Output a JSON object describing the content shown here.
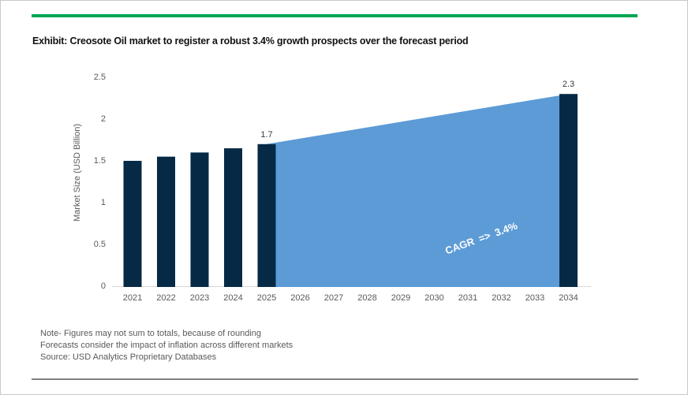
{
  "title": "Exhibit: Creosote Oil market to register a robust 3.4% growth prospects over the forecast period",
  "theme": {
    "accent_green": "#00A651",
    "bottom_rule_gray": "#7F7F7F",
    "axis_line_gray": "#D9D9D9",
    "tick_text_gray": "#595959"
  },
  "chart_data": {
    "type": "bar",
    "title": "",
    "categories": [
      "2021",
      "2022",
      "2023",
      "2024",
      "2025",
      "2026",
      "2027",
      "2028",
      "2029",
      "2030",
      "2031",
      "2032",
      "2033",
      "2034"
    ],
    "series": [
      {
        "name": "Market Size bars",
        "type": "bar",
        "values": [
          1.5,
          1.55,
          1.6,
          1.65,
          1.7,
          null,
          null,
          null,
          null,
          null,
          null,
          null,
          null,
          2.3
        ]
      },
      {
        "name": "Forecast wedge",
        "type": "area",
        "x": [
          "2025",
          "2034"
        ],
        "values": [
          1.7,
          2.3
        ]
      }
    ],
    "data_labels": [
      {
        "category": "2025",
        "label": "1.7",
        "value": 1.7
      },
      {
        "category": "2034",
        "label": "2.3",
        "value": 2.3
      }
    ],
    "annotation": {
      "text": "CAGR =>  3.4%",
      "color": "#FFFFFF",
      "rotation_deg": -20
    },
    "xlabel": "",
    "ylabel": "Market Size (USD Billion)",
    "yticks": [
      0,
      0.5,
      1,
      1.5,
      2,
      2.5
    ],
    "ytick_labels": [
      "0",
      "0.5",
      "1",
      "1.5",
      "2",
      "2.5"
    ],
    "ylim": [
      0,
      2.5
    ],
    "grid": false,
    "legend": "none",
    "colors": {
      "bar": "#062A45",
      "area": "#5C9BD6"
    }
  },
  "notes": [
    "Note- Figures may not sum to totals, because of rounding",
    "Forecasts consider the impact of inflation across different markets",
    "Source: USD Analytics Proprietary Databases"
  ]
}
